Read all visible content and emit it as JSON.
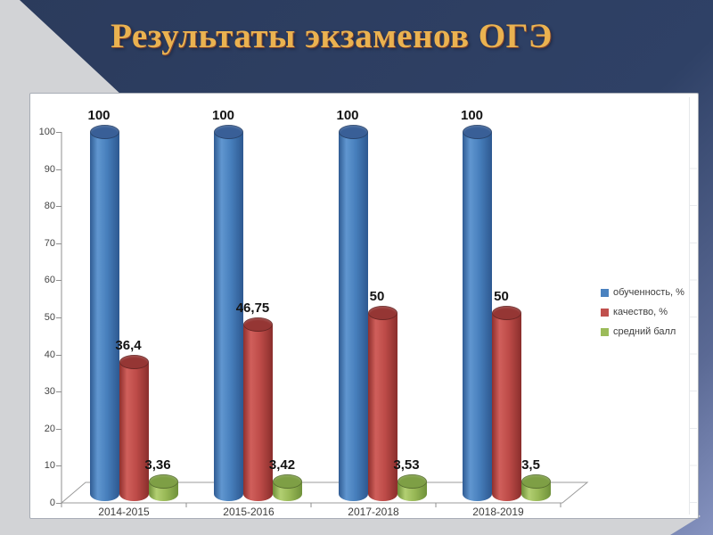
{
  "slide": {
    "title": "Результаты экзаменов ОГЭ"
  },
  "colors": {
    "background_navy": "#2f4166",
    "background_periwinkle": "#8693c0",
    "corner_gray": "#d2d3d6",
    "title_gold": "#eab250",
    "panel_white": "#ffffff",
    "axis_gray": "#8f8f8f"
  },
  "chart_data": {
    "type": "bar",
    "style": "3d-cylinder",
    "title": "",
    "xlabel": "",
    "ylabel": "",
    "categories": [
      "2014-2015",
      "2015-2016",
      "2017-2018",
      "2018-2019"
    ],
    "series": [
      {
        "name": "обученность, %",
        "color": "#4a82bf",
        "top_color": "#395f97",
        "body_gradient": [
          "#2f5b92",
          "#6096d0",
          "#477fbc",
          "#2d5890"
        ],
        "values": [
          100,
          100,
          100,
          100
        ],
        "labels": [
          "100",
          "100",
          "100",
          "100"
        ]
      },
      {
        "name": "качество, %",
        "color": "#c0504d",
        "top_color": "#953634",
        "body_gradient": [
          "#8e2f2d",
          "#d05f5b",
          "#bd4b48",
          "#8a2e2c"
        ],
        "values": [
          36.4,
          46.75,
          50,
          50
        ],
        "labels": [
          "36,4",
          "46,75",
          "50",
          "50"
        ]
      },
      {
        "name": "средний балл",
        "color": "#9bbb59",
        "top_color": "#7e9f45",
        "body_gradient": [
          "#6e9039",
          "#b2cf72",
          "#98b856",
          "#6f913a"
        ],
        "values": [
          3.36,
          3.42,
          3.53,
          3.5
        ],
        "labels": [
          "3,36",
          "3,42",
          "3,53",
          "3,5"
        ]
      }
    ],
    "ylim": [
      0,
      100
    ],
    "yticks": [
      0,
      10,
      20,
      30,
      40,
      50,
      60,
      70,
      80,
      90,
      100
    ],
    "legend_position": "right",
    "grid": false
  }
}
